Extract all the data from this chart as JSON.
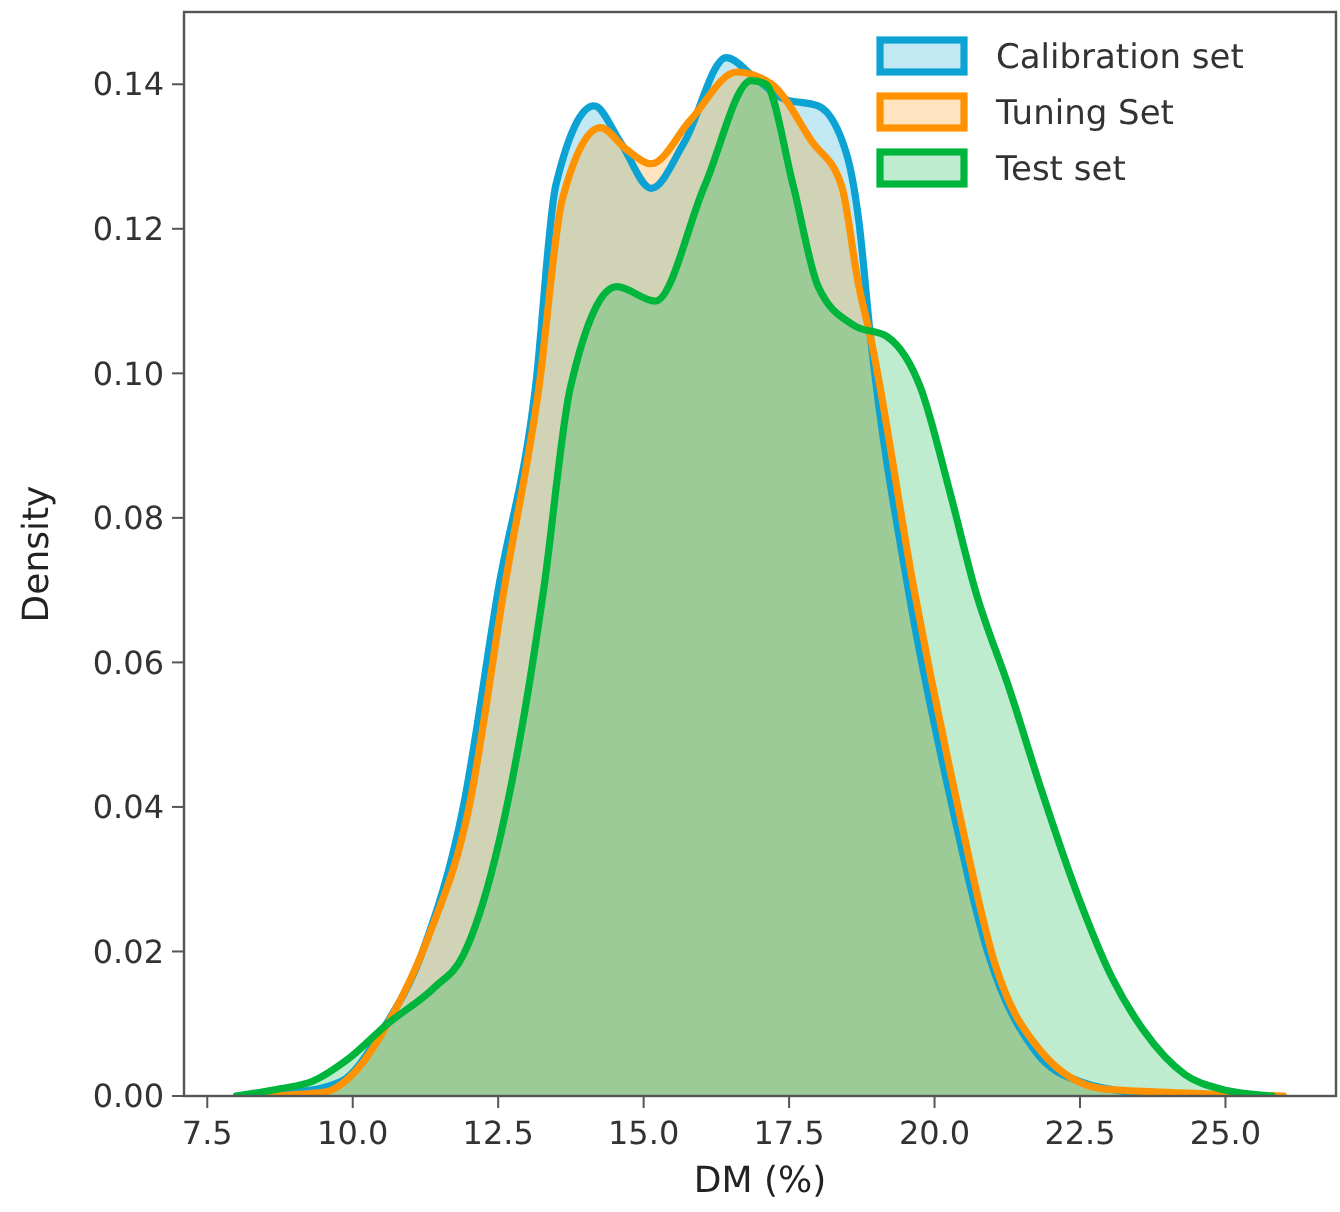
{
  "chart_data": {
    "type": "area",
    "xlabel": "DM (%)",
    "ylabel": "Density",
    "xlim": [
      7.1,
      26.9
    ],
    "ylim": [
      0,
      0.15
    ],
    "xticks": [
      {
        "value": 7.5,
        "label": "7.5"
      },
      {
        "value": 10,
        "label": "10.0"
      },
      {
        "value": 12.5,
        "label": "12.5"
      },
      {
        "value": 15,
        "label": "15.0"
      },
      {
        "value": 17.5,
        "label": "17.5"
      },
      {
        "value": 20,
        "label": "20.0"
      },
      {
        "value": 22.5,
        "label": "22.5"
      },
      {
        "value": 25,
        "label": "25.0"
      }
    ],
    "yticks": [
      {
        "value": 0,
        "label": "0.00"
      },
      {
        "value": 0.02,
        "label": "0.02"
      },
      {
        "value": 0.04,
        "label": "0.04"
      },
      {
        "value": 0.06,
        "label": "0.06"
      },
      {
        "value": 0.08,
        "label": "0.08"
      },
      {
        "value": 0.1,
        "label": "0.10"
      },
      {
        "value": 0.12,
        "label": "0.12"
      },
      {
        "value": 0.14,
        "label": "0.14"
      }
    ],
    "grid": false,
    "legend": "top right",
    "line_style": "solid",
    "series": [
      {
        "name": "Calibration set",
        "color": "#0ca2d4",
        "x": [
          8.0,
          9.0,
          9.8,
          10.5,
          11.2,
          11.9,
          12.5,
          13.14,
          13.49,
          14.15,
          14.6,
          15.13,
          15.7,
          16.42,
          16.9,
          17.4,
          18.0,
          18.5,
          18.7,
          18.9,
          19.55,
          20.25,
          20.95,
          21.75,
          22.5,
          23.5,
          25.5
        ],
        "values": [
          0,
          0.0005,
          0.002,
          0.009,
          0.02,
          0.04,
          0.07,
          0.098,
          0.126,
          0.137,
          0.132,
          0.1256,
          0.132,
          0.1437,
          0.141,
          0.138,
          0.137,
          0.13,
          0.121,
          0.105,
          0.07,
          0.042,
          0.019,
          0.006,
          0.002,
          0.0005,
          0
        ]
      },
      {
        "name": "Tuning Set",
        "color": "#ff9200",
        "x": [
          8.5,
          9.5,
          10.0,
          10.6,
          11.3,
          12.0,
          12.6,
          13.2,
          13.6,
          14.26,
          14.7,
          15.13,
          15.8,
          16.6,
          17.2,
          17.9,
          18.4,
          18.7,
          18.9,
          19.65,
          20.35,
          21.05,
          21.85,
          22.9,
          24.0,
          26.0
        ],
        "values": [
          0,
          0.0005,
          0.003,
          0.01,
          0.022,
          0.04,
          0.07,
          0.098,
          0.124,
          0.134,
          0.131,
          0.129,
          0.135,
          0.1417,
          0.14,
          0.132,
          0.126,
          0.112,
          0.105,
          0.07,
          0.042,
          0.018,
          0.006,
          0.001,
          0.0005,
          0
        ]
      },
      {
        "name": "Test set",
        "color": "#00b53c",
        "x": [
          8.0,
          8.75,
          9.3,
          9.9,
          10.6,
          11.4,
          11.9,
          12.45,
          12.93,
          13.28,
          13.74,
          14.54,
          15.2,
          16.05,
          16.85,
          17.1,
          17.57,
          18.0,
          18.6,
          19.2,
          19.76,
          20.25,
          20.7,
          21.3,
          21.85,
          22.45,
          23.05,
          23.6,
          24.3,
          24.9,
          25.8
        ],
        "values": [
          0,
          0.001,
          0.002,
          0.005,
          0.01,
          0.015,
          0.0195,
          0.033,
          0.052,
          0.07,
          0.098,
          0.112,
          0.11,
          0.126,
          0.1405,
          0.14,
          0.126,
          0.112,
          0.1067,
          0.105,
          0.098,
          0.084,
          0.07,
          0.056,
          0.042,
          0.028,
          0.0164,
          0.009,
          0.003,
          0.001,
          0
        ]
      }
    ]
  }
}
